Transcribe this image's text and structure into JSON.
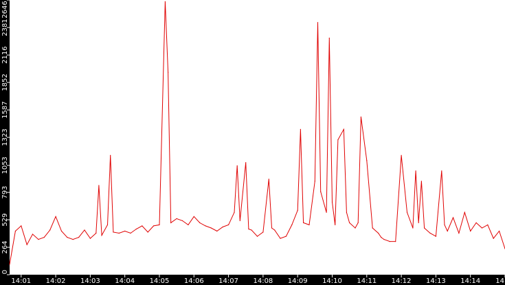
{
  "colors": {
    "background": "#ffffff",
    "axis_fill": "#000000",
    "tick_text": "#ffffff",
    "line": "#e00000"
  },
  "chart_data": {
    "type": "line",
    "title": "",
    "xlabel": "",
    "ylabel": "",
    "grid": false,
    "legend": "none",
    "ylim": [
      0,
      2646
    ],
    "xlim": [
      "14:00:40",
      "14:15:00"
    ],
    "y_ticks": [
      "0",
      "264",
      "529",
      "793",
      "1053",
      "1323",
      "1587",
      "1852",
      "2116",
      "2381",
      "2646"
    ],
    "x_ticks": [
      "14:01",
      "14:02",
      "14:03",
      "14:04",
      "14:05",
      "14:06",
      "14:07",
      "14:08",
      "14:09",
      "14:10",
      "14:11",
      "14:12",
      "14:13",
      "14:14",
      "14"
    ],
    "series": [
      {
        "color": "#e00000",
        "x": [
          "14:00:40",
          "14:00:50",
          "14:01:00",
          "14:01:10",
          "14:01:20",
          "14:01:30",
          "14:01:40",
          "14:01:50",
          "14:02:00",
          "14:02:10",
          "14:02:20",
          "14:02:30",
          "14:02:40",
          "14:02:50",
          "14:03:00",
          "14:03:10",
          "14:03:15",
          "14:03:20",
          "14:03:30",
          "14:03:35",
          "14:03:40",
          "14:03:50",
          "14:04:00",
          "14:04:10",
          "14:04:20",
          "14:04:30",
          "14:04:40",
          "14:04:50",
          "14:05:00",
          "14:05:10",
          "14:05:15",
          "14:05:20",
          "14:05:30",
          "14:05:40",
          "14:05:50",
          "14:06:00",
          "14:06:10",
          "14:06:20",
          "14:06:30",
          "14:06:40",
          "14:06:50",
          "14:07:00",
          "14:07:10",
          "14:07:15",
          "14:07:20",
          "14:07:30",
          "14:07:35",
          "14:07:40",
          "14:07:50",
          "14:08:00",
          "14:08:10",
          "14:08:15",
          "14:08:20",
          "14:08:30",
          "14:08:40",
          "14:08:50",
          "14:09:00",
          "14:09:05",
          "14:09:10",
          "14:09:20",
          "14:09:30",
          "14:09:35",
          "14:09:40",
          "14:09:50",
          "14:09:55",
          "14:10:00",
          "14:10:05",
          "14:10:10",
          "14:10:20",
          "14:10:25",
          "14:10:30",
          "14:10:40",
          "14:10:45",
          "14:10:50",
          "14:11:00",
          "14:11:10",
          "14:11:20",
          "14:11:25",
          "14:11:30",
          "14:11:40",
          "14:11:50",
          "14:12:00",
          "14:12:10",
          "14:12:20",
          "14:12:25",
          "14:12:30",
          "14:12:35",
          "14:12:40",
          "14:12:50",
          "14:13:00",
          "14:13:10",
          "14:13:15",
          "14:13:20",
          "14:13:30",
          "14:13:40",
          "14:13:50",
          "14:14:00",
          "14:14:10",
          "14:14:20",
          "14:14:30",
          "14:14:40",
          "14:14:50",
          "14:15:00"
        ],
        "y": [
          100,
          420,
          470,
          290,
          390,
          340,
          360,
          430,
          560,
          420,
          360,
          340,
          360,
          430,
          350,
          400,
          860,
          380,
          480,
          1150,
          410,
          400,
          420,
          400,
          440,
          470,
          410,
          470,
          480,
          2630,
          1950,
          500,
          540,
          520,
          480,
          560,
          500,
          470,
          450,
          420,
          460,
          480,
          600,
          1050,
          520,
          1080,
          440,
          430,
          370,
          410,
          920,
          450,
          430,
          350,
          370,
          480,
          620,
          1400,
          500,
          480,
          900,
          2430,
          800,
          600,
          2280,
          700,
          480,
          1300,
          1400,
          600,
          500,
          450,
          500,
          1520,
          1100,
          450,
          400,
          360,
          340,
          320,
          320,
          1150,
          600,
          450,
          1000,
          500,
          900,
          450,
          400,
          370,
          1000,
          480,
          420,
          550,
          400,
          600,
          420,
          500,
          450,
          480,
          350,
          420,
          250
        ]
      }
    ]
  }
}
